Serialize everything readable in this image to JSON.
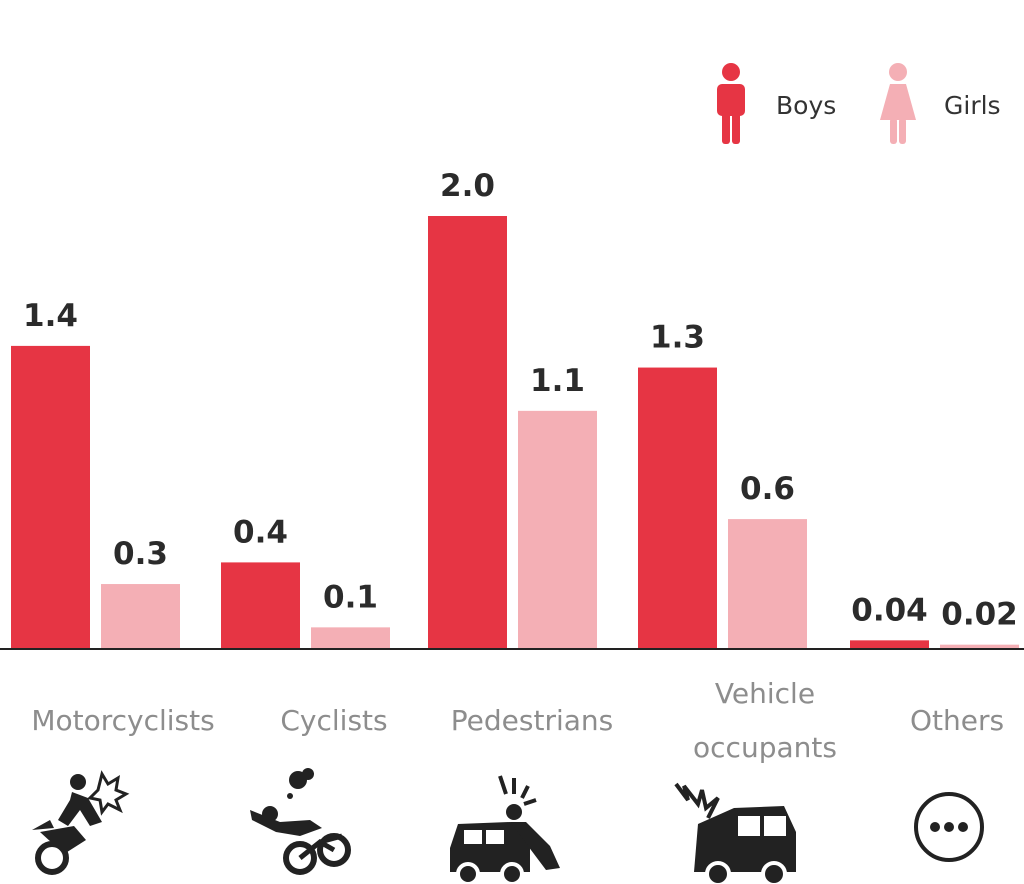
{
  "chart_data": {
    "type": "bar",
    "categories": [
      "Motorcyclists",
      "Cyclists",
      "Pedestrians",
      "Vehicle occupants",
      "Others"
    ],
    "category_label_lines": [
      [
        "Motorcyclists"
      ],
      [
        "Cyclists"
      ],
      [
        "Pedestrians"
      ],
      [
        "Vehicle",
        "occupants"
      ],
      [
        "Others"
      ]
    ],
    "series": [
      {
        "name": "Boys",
        "values": [
          1.4,
          0.4,
          2.0,
          1.3,
          0.04
        ],
        "labels": [
          "1.4",
          "0.4",
          "2.0",
          "1.3",
          "0.04"
        ],
        "color": "#e63544"
      },
      {
        "name": "Girls",
        "values": [
          0.3,
          0.1,
          1.1,
          0.6,
          0.02
        ],
        "labels": [
          "0.3",
          "0.1",
          "1.1",
          "0.6",
          "0.02"
        ],
        "color": "#f4afb5"
      }
    ],
    "category_icons": [
      "motorcyclist-crash-icon",
      "cyclist-crash-icon",
      "pedestrian-car-crash-icon",
      "vehicle-crash-icon",
      "more-dots-icon"
    ],
    "legend_icons": [
      "boy-figure-icon",
      "girl-figure-icon"
    ],
    "ylim": [
      0,
      2.0
    ],
    "grid": false,
    "legend_position": "top-right",
    "baseline_color": "#222222",
    "category_label_color": "#8d8d8d",
    "icon_color": "#222222"
  }
}
